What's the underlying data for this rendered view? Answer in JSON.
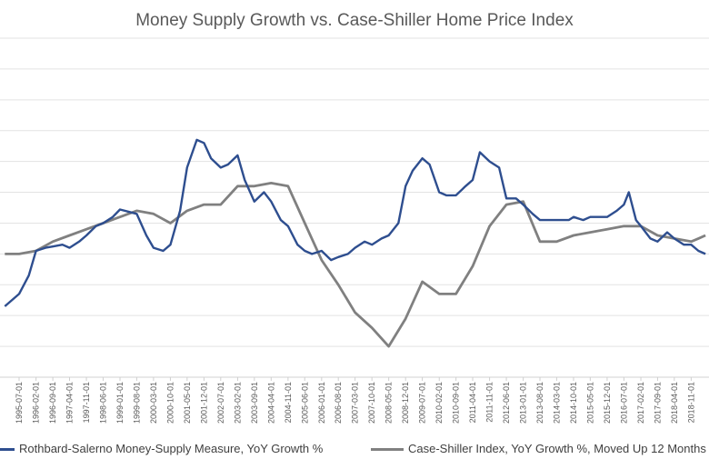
{
  "chart_data": {
    "type": "line",
    "title": "Money Supply Growth vs. Case-Shiller Home Price Index",
    "xlabel": "",
    "ylabel": "",
    "grid": true,
    "legend_position": "bottom",
    "x_tick_labels": [
      "1995-07-01",
      "1996-02-01",
      "1996-09-01",
      "1997-04-01",
      "1997-11-01",
      "1998-06-01",
      "1999-01-01",
      "1999-08-01",
      "2000-03-01",
      "2000-10-01",
      "2001-05-01",
      "2001-12-01",
      "2002-07-01",
      "2003-02-01",
      "2003-09-01",
      "2004-04-01",
      "2004-11-01",
      "2005-06-01",
      "2006-01-01",
      "2006-08-01",
      "2007-03-01",
      "2007-10-01",
      "2008-05-01",
      "2008-12-01",
      "2009-07-01",
      "2010-02-01",
      "2010-09-01",
      "2011-04-01",
      "2011-11-01",
      "2012-06-01",
      "2013-01-01",
      "2013-08-01",
      "2014-03-01",
      "2014-10-01",
      "2015-05-01",
      "2015-12-01",
      "2016-07-01",
      "2017-02-01",
      "2017-09-01",
      "2018-04-01",
      "2018-11-01"
    ],
    "series": [
      {
        "name": "Rothbard-Salerno Money-Supply Measure, YoY Growth %",
        "color": "#2E4E8F",
        "points": [
          [
            "1995-01-01",
            -8.5
          ],
          [
            "1995-07-01",
            -6.5
          ],
          [
            "1995-11-01",
            -3.5
          ],
          [
            "1996-02-01",
            0.5
          ],
          [
            "1996-06-01",
            1.0
          ],
          [
            "1996-09-01",
            1.2
          ],
          [
            "1997-01-01",
            1.5
          ],
          [
            "1997-04-01",
            1.0
          ],
          [
            "1997-08-01",
            2.0
          ],
          [
            "1997-11-01",
            3.0
          ],
          [
            "1998-03-01",
            4.5
          ],
          [
            "1998-06-01",
            5.0
          ],
          [
            "1998-10-01",
            6.0
          ],
          [
            "1999-01-01",
            7.2
          ],
          [
            "1999-05-01",
            6.8
          ],
          [
            "1999-08-01",
            6.5
          ],
          [
            "1999-12-01",
            3.0
          ],
          [
            "2000-03-01",
            1.0
          ],
          [
            "2000-07-01",
            0.5
          ],
          [
            "2000-10-01",
            1.5
          ],
          [
            "2001-02-01",
            7.0
          ],
          [
            "2001-05-01",
            14.0
          ],
          [
            "2001-09-01",
            18.5
          ],
          [
            "2001-12-01",
            18.0
          ],
          [
            "2002-03-01",
            15.5
          ],
          [
            "2002-07-01",
            14.0
          ],
          [
            "2002-10-01",
            14.5
          ],
          [
            "2003-02-01",
            16.0
          ],
          [
            "2003-05-01",
            12.0
          ],
          [
            "2003-09-01",
            8.5
          ],
          [
            "2004-01-01",
            10.0
          ],
          [
            "2004-04-01",
            8.5
          ],
          [
            "2004-08-01",
            5.5
          ],
          [
            "2004-11-01",
            4.5
          ],
          [
            "2005-03-01",
            1.5
          ],
          [
            "2005-06-01",
            0.5
          ],
          [
            "2005-09-01",
            0.0
          ],
          [
            "2006-01-01",
            0.5
          ],
          [
            "2006-05-01",
            -1.0
          ],
          [
            "2006-08-01",
            -0.5
          ],
          [
            "2006-12-01",
            0.0
          ],
          [
            "2007-03-01",
            1.0
          ],
          [
            "2007-07-01",
            2.0
          ],
          [
            "2007-10-01",
            1.5
          ],
          [
            "2008-02-01",
            2.5
          ],
          [
            "2008-05-01",
            3.0
          ],
          [
            "2008-09-01",
            5.0
          ],
          [
            "2008-12-01",
            11.0
          ],
          [
            "2009-03-01",
            13.5
          ],
          [
            "2009-07-01",
            15.5
          ],
          [
            "2009-10-01",
            14.5
          ],
          [
            "2010-02-01",
            10.0
          ],
          [
            "2010-05-01",
            9.5
          ],
          [
            "2010-09-01",
            9.5
          ],
          [
            "2011-01-01",
            11.0
          ],
          [
            "2011-04-01",
            12.0
          ],
          [
            "2011-07-01",
            16.5
          ],
          [
            "2011-11-01",
            15.0
          ],
          [
            "2012-03-01",
            14.0
          ],
          [
            "2012-06-01",
            9.0
          ],
          [
            "2012-10-01",
            9.0
          ],
          [
            "2013-01-01",
            8.0
          ],
          [
            "2013-05-01",
            6.5
          ],
          [
            "2013-08-01",
            5.5
          ],
          [
            "2014-01-01",
            5.5
          ],
          [
            "2014-03-01",
            5.5
          ],
          [
            "2014-08-01",
            5.5
          ],
          [
            "2014-10-01",
            6.0
          ],
          [
            "2015-02-01",
            5.5
          ],
          [
            "2015-05-01",
            6.0
          ],
          [
            "2015-09-01",
            6.0
          ],
          [
            "2015-12-01",
            6.0
          ],
          [
            "2016-04-01",
            7.0
          ],
          [
            "2016-07-01",
            8.0
          ],
          [
            "2016-09-01",
            10.0
          ],
          [
            "2016-12-01",
            5.5
          ],
          [
            "2017-02-01",
            4.5
          ],
          [
            "2017-06-01",
            2.5
          ],
          [
            "2017-09-01",
            2.0
          ],
          [
            "2018-01-01",
            3.5
          ],
          [
            "2018-04-01",
            2.5
          ],
          [
            "2018-08-01",
            1.5
          ],
          [
            "2018-11-01",
            1.5
          ],
          [
            "2019-02-01",
            0.5
          ],
          [
            "2019-05-01",
            0.0
          ]
        ]
      },
      {
        "name": "Case-Shiller Index, YoY Growth %, Moved Up 12 Months",
        "color": "#808080",
        "points": [
          [
            "1995-01-01",
            0.0
          ],
          [
            "1995-07-01",
            0.0
          ],
          [
            "1996-02-01",
            0.5
          ],
          [
            "1996-09-01",
            2.0
          ],
          [
            "1997-04-01",
            3.0
          ],
          [
            "1997-11-01",
            4.0
          ],
          [
            "1998-06-01",
            5.0
          ],
          [
            "1999-01-01",
            6.0
          ],
          [
            "1999-08-01",
            7.0
          ],
          [
            "2000-03-01",
            6.5
          ],
          [
            "2000-10-01",
            5.0
          ],
          [
            "2001-05-01",
            7.0
          ],
          [
            "2001-12-01",
            8.0
          ],
          [
            "2002-07-01",
            8.0
          ],
          [
            "2003-02-01",
            11.0
          ],
          [
            "2003-09-01",
            11.0
          ],
          [
            "2004-04-01",
            11.5
          ],
          [
            "2004-11-01",
            11.0
          ],
          [
            "2005-06-01",
            5.0
          ],
          [
            "2006-01-01",
            -1.0
          ],
          [
            "2006-08-01",
            -5.0
          ],
          [
            "2007-03-01",
            -9.5
          ],
          [
            "2007-10-01",
            -12.0
          ],
          [
            "2008-05-01",
            -15.0
          ],
          [
            "2008-12-01",
            -10.5
          ],
          [
            "2009-07-01",
            -4.5
          ],
          [
            "2010-02-01",
            -6.5
          ],
          [
            "2010-09-01",
            -6.5
          ],
          [
            "2011-04-01",
            -2.0
          ],
          [
            "2011-11-01",
            4.5
          ],
          [
            "2012-06-01",
            8.0
          ],
          [
            "2013-01-01",
            8.5
          ],
          [
            "2013-08-01",
            2.0
          ],
          [
            "2014-03-01",
            2.0
          ],
          [
            "2014-10-01",
            3.0
          ],
          [
            "2015-05-01",
            3.5
          ],
          [
            "2015-12-01",
            4.0
          ],
          [
            "2016-07-01",
            4.5
          ],
          [
            "2017-02-01",
            4.5
          ],
          [
            "2017-09-01",
            3.0
          ],
          [
            "2018-04-01",
            2.5
          ],
          [
            "2018-11-01",
            2.0
          ],
          [
            "2019-02-01",
            2.5
          ],
          [
            "2019-05-01",
            3.0
          ]
        ]
      }
    ]
  }
}
